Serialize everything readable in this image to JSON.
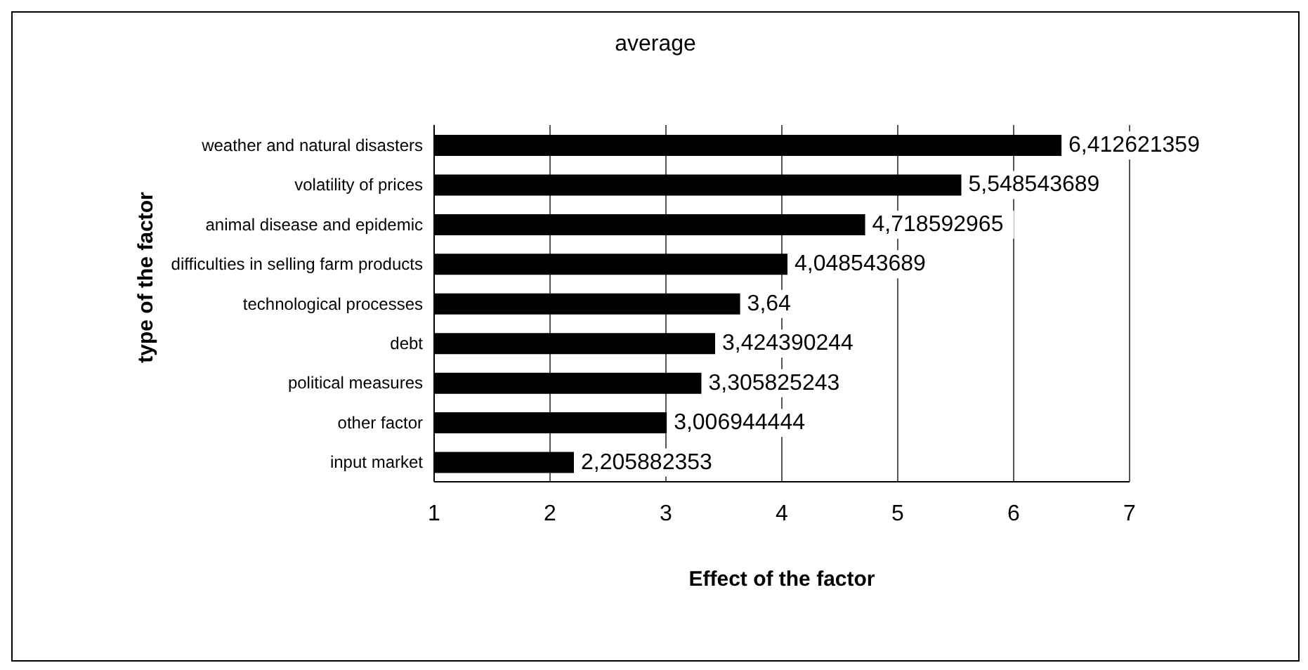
{
  "chart_data": {
    "type": "bar",
    "orientation": "horizontal",
    "title": "average",
    "xlabel": "Effect of the factor",
    "ylabel": "type of the factor",
    "categories": [
      "weather and natural disasters",
      "volatility of prices",
      "animal disease and epidemic",
      "difficulties in selling farm products",
      "technological processes",
      "debt",
      "political measures",
      "other factor",
      "input market"
    ],
    "values": [
      6.412621359,
      5.548543689,
      4.718592965,
      4.048543689,
      3.64,
      3.424390244,
      3.305825243,
      3.006944444,
      2.205882353
    ],
    "value_labels": [
      "6,412621359",
      "5,548543689",
      "4,718592965",
      "4,048543689",
      "3,64",
      "3,424390244",
      "3,305825243",
      "3,006944444",
      "2,205882353"
    ],
    "color": "#000000",
    "xlim": [
      1,
      7
    ],
    "xticks": [
      1,
      2,
      3,
      4,
      5,
      6,
      7
    ],
    "grid": "x",
    "legend": false
  }
}
